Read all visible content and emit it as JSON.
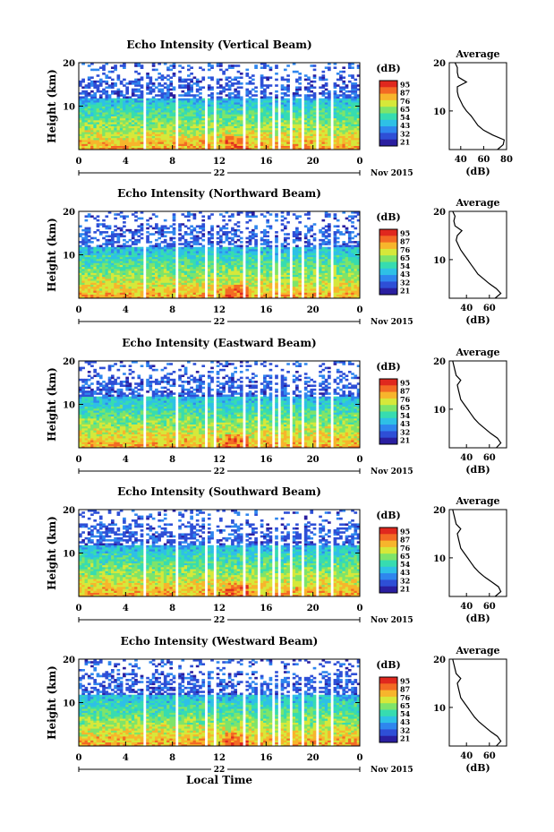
{
  "chart_data": [
    {
      "type": "heatmap",
      "title": "Echo Intensity (Vertical Beam)",
      "ylabel": "Height (km)",
      "ylim": [
        0,
        20
      ],
      "yticks": [
        "20",
        "10"
      ],
      "xticks": [
        "0",
        "4",
        "8",
        "12",
        "16",
        "20",
        "0"
      ],
      "xlim": [
        0,
        24
      ],
      "date_day": "22",
      "date_month": "Nov 2015",
      "gaps_hours": [
        [
          5.5,
          5.8
        ],
        [
          8.3,
          8.6
        ],
        [
          10.7,
          11.0
        ],
        [
          11.6,
          11.8
        ],
        [
          14.0,
          14.3
        ],
        [
          15.2,
          15.4
        ],
        [
          16.6,
          16.8
        ],
        [
          17.0,
          17.3
        ],
        [
          17.9,
          18.2
        ],
        [
          18.9,
          19.2
        ],
        [
          20.2,
          20.5
        ],
        [
          21.6,
          21.8
        ]
      ],
      "colorbar": {
        "unit": "(dB)",
        "ticks": [
          "95",
          "87",
          "76",
          "65",
          "54",
          "43",
          "32",
          "21"
        ]
      },
      "profile": {
        "title": "Average",
        "xlabel": "(dB)",
        "xticks": [
          "40",
          "60",
          "80"
        ],
        "yticks": [
          "20",
          "10"
        ],
        "xlim": [
          30,
          80
        ],
        "ylim": [
          2,
          20
        ],
        "height_km": [
          2,
          3,
          4,
          5,
          6,
          7,
          8,
          9,
          10,
          11,
          12,
          13,
          14,
          15,
          16,
          17,
          18,
          19,
          20
        ],
        "db": [
          72,
          77,
          78,
          68,
          60,
          55,
          52,
          49,
          45,
          42,
          40,
          38,
          37,
          37,
          45,
          38,
          37,
          37,
          35
        ]
      }
    },
    {
      "type": "heatmap",
      "title": "Echo Intensity (Northward Beam)",
      "ylabel": "Height (km)",
      "ylim": [
        0,
        20
      ],
      "yticks": [
        "20",
        "10"
      ],
      "xticks": [
        "0",
        "4",
        "8",
        "12",
        "16",
        "20",
        "0"
      ],
      "xlim": [
        0,
        24
      ],
      "date_day": "22",
      "date_month": "Nov 2015",
      "gaps_hours": [
        [
          5.5,
          5.8
        ],
        [
          8.3,
          8.6
        ],
        [
          10.7,
          11.0
        ],
        [
          11.6,
          11.8
        ],
        [
          14.0,
          14.3
        ],
        [
          15.2,
          15.4
        ],
        [
          16.6,
          16.8
        ],
        [
          17.0,
          17.3
        ],
        [
          17.9,
          18.2
        ],
        [
          18.9,
          19.2
        ],
        [
          20.2,
          20.5
        ],
        [
          21.6,
          21.8
        ]
      ],
      "colorbar": {
        "unit": "(dB)",
        "ticks": [
          "95",
          "87",
          "76",
          "65",
          "54",
          "43",
          "32",
          "21"
        ]
      },
      "profile": {
        "title": "Average",
        "xlabel": "(dB)",
        "xticks": [
          "40",
          "60"
        ],
        "yticks": [
          "20",
          "10"
        ],
        "xlim": [
          25,
          75
        ],
        "ylim": [
          2,
          20
        ],
        "height_km": [
          2,
          3,
          4,
          5,
          6,
          7,
          8,
          9,
          10,
          11,
          12,
          13,
          14,
          15,
          16,
          17,
          18,
          19,
          20
        ],
        "db": [
          65,
          70,
          66,
          60,
          55,
          50,
          47,
          44,
          41,
          38,
          35,
          33,
          31,
          32,
          36,
          30,
          29,
          30,
          28
        ]
      }
    },
    {
      "type": "heatmap",
      "title": "Echo Intensity (Eastward Beam)",
      "ylabel": "Height (km)",
      "ylim": [
        0,
        20
      ],
      "yticks": [
        "20",
        "10"
      ],
      "xticks": [
        "0",
        "4",
        "8",
        "12",
        "16",
        "20",
        "0"
      ],
      "xlim": [
        0,
        24
      ],
      "date_day": "22",
      "date_month": "Nov 2015",
      "gaps_hours": [
        [
          5.5,
          5.8
        ],
        [
          8.3,
          8.6
        ],
        [
          10.7,
          11.0
        ],
        [
          11.6,
          11.8
        ],
        [
          14.0,
          14.3
        ],
        [
          15.2,
          15.4
        ],
        [
          16.6,
          16.8
        ],
        [
          17.0,
          17.3
        ],
        [
          17.9,
          18.2
        ],
        [
          18.9,
          19.2
        ],
        [
          20.2,
          20.5
        ],
        [
          21.6,
          21.8
        ]
      ],
      "colorbar": {
        "unit": "(dB)",
        "ticks": [
          "95",
          "87",
          "76",
          "65",
          "54",
          "43",
          "32",
          "21"
        ]
      },
      "profile": {
        "title": "Average",
        "xlabel": "(dB)",
        "xticks": [
          "40",
          "60"
        ],
        "yticks": [
          "20",
          "10"
        ],
        "xlim": [
          25,
          75
        ],
        "ylim": [
          2,
          20
        ],
        "height_km": [
          2,
          3,
          4,
          5,
          6,
          7,
          8,
          9,
          10,
          11,
          12,
          13,
          14,
          15,
          16,
          17,
          18,
          19,
          20
        ],
        "db": [
          66,
          70,
          67,
          61,
          56,
          51,
          47,
          44,
          41,
          38,
          35,
          34,
          33,
          32,
          35,
          31,
          30,
          29,
          28
        ]
      }
    },
    {
      "type": "heatmap",
      "title": "Echo Intensity (Southward Beam)",
      "ylabel": "Height (km)",
      "ylim": [
        0,
        20
      ],
      "yticks": [
        "20",
        "10"
      ],
      "xticks": [
        "0",
        "4",
        "8",
        "12",
        "16",
        "20",
        "0"
      ],
      "xlim": [
        0,
        24
      ],
      "date_day": "22",
      "date_month": "Nov 2015",
      "gaps_hours": [
        [
          5.5,
          5.8
        ],
        [
          8.3,
          8.6
        ],
        [
          10.7,
          11.0
        ],
        [
          11.6,
          11.8
        ],
        [
          14.0,
          14.3
        ],
        [
          15.2,
          15.4
        ],
        [
          16.6,
          16.8
        ],
        [
          17.0,
          17.3
        ],
        [
          17.9,
          18.2
        ],
        [
          18.9,
          19.2
        ],
        [
          20.2,
          20.5
        ],
        [
          21.6,
          21.8
        ]
      ],
      "colorbar": {
        "unit": "(dB)",
        "ticks": [
          "95",
          "87",
          "76",
          "65",
          "54",
          "43",
          "32",
          "21"
        ]
      },
      "profile": {
        "title": "Average",
        "xlabel": "(dB)",
        "xticks": [
          "40",
          "60"
        ],
        "yticks": [
          "20",
          "10"
        ],
        "xlim": [
          25,
          75
        ],
        "ylim": [
          2,
          20
        ],
        "height_km": [
          2,
          3,
          4,
          5,
          6,
          7,
          8,
          9,
          10,
          11,
          12,
          13,
          14,
          15,
          16,
          17,
          18,
          19,
          20
        ],
        "db": [
          65,
          70,
          68,
          62,
          56,
          51,
          47,
          44,
          41,
          38,
          35,
          34,
          33,
          32,
          35,
          31,
          30,
          29,
          28
        ]
      }
    },
    {
      "type": "heatmap",
      "title": "Echo Intensity (Westward Beam)",
      "ylabel": "Height (km)",
      "ylim": [
        0,
        20
      ],
      "yticks": [
        "20",
        "10"
      ],
      "xticks": [
        "0",
        "4",
        "8",
        "12",
        "16",
        "20",
        "0"
      ],
      "xlim": [
        0,
        24
      ],
      "date_day": "22",
      "date_month": "Nov 2015",
      "xlabel": "Local Time",
      "gaps_hours": [
        [
          5.5,
          5.8
        ],
        [
          8.3,
          8.6
        ],
        [
          10.7,
          11.0
        ],
        [
          11.6,
          11.8
        ],
        [
          14.0,
          14.3
        ],
        [
          15.2,
          15.4
        ],
        [
          16.6,
          16.8
        ],
        [
          17.0,
          17.3
        ],
        [
          17.9,
          18.2
        ],
        [
          18.9,
          19.2
        ],
        [
          20.2,
          20.5
        ],
        [
          21.6,
          21.8
        ]
      ],
      "colorbar": {
        "unit": "(dB)",
        "ticks": [
          "95",
          "87",
          "76",
          "65",
          "54",
          "43",
          "32",
          "21"
        ]
      },
      "profile": {
        "title": "Average",
        "xlabel": "(dB)",
        "xticks": [
          "40",
          "60"
        ],
        "yticks": [
          "20",
          "10"
        ],
        "xlim": [
          25,
          75
        ],
        "ylim": [
          2,
          20
        ],
        "height_km": [
          2,
          3,
          4,
          5,
          6,
          7,
          8,
          9,
          10,
          11,
          12,
          13,
          14,
          15,
          16,
          17,
          18,
          19,
          20
        ],
        "db": [
          66,
          70,
          67,
          61,
          56,
          51,
          47,
          44,
          41,
          38,
          35,
          34,
          33,
          32,
          35,
          31,
          30,
          29,
          28
        ]
      }
    }
  ]
}
